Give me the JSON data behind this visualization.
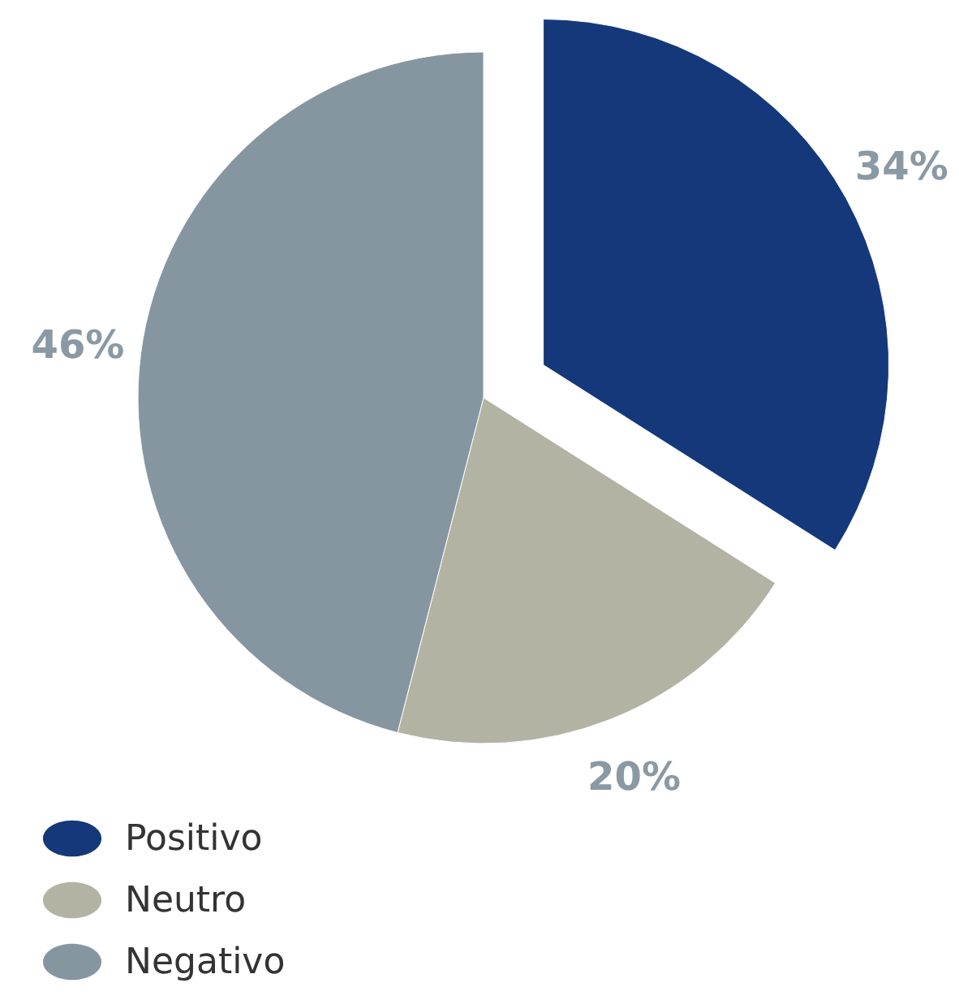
{
  "chart_data": {
    "type": "pie",
    "categories": [
      "Positivo",
      "Neutro",
      "Negativo"
    ],
    "values": [
      34,
      20,
      46
    ],
    "colors": [
      "#14387a",
      "#b2b3a3",
      "#8696a1"
    ],
    "value_labels": [
      "34%",
      "20%",
      "46%"
    ],
    "legend": "bottom left"
  }
}
